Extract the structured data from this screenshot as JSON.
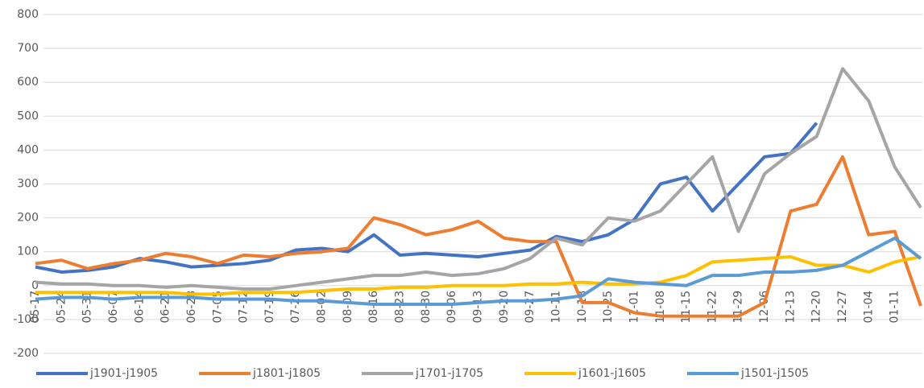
{
  "chart_data": {
    "type": "line",
    "categories": [
      "05-17",
      "05-24",
      "05-31",
      "06-07",
      "06-14",
      "06-21",
      "06-28",
      "07-05",
      "07-12",
      "07-19",
      "07-26",
      "08-02",
      "08-09",
      "08-16",
      "08-23",
      "08-30",
      "09-06",
      "09-13",
      "09-20",
      "09-27",
      "10-11",
      "10-18",
      "10-25",
      "11-01",
      "11-08",
      "11-15",
      "11-22",
      "11-29",
      "12-06",
      "12-13",
      "12-20",
      "12-27",
      "01-04",
      "01-11",
      null
    ],
    "series": [
      {
        "name": "j1901-j1905",
        "color": "#4472c4",
        "values": [
          55,
          40,
          45,
          55,
          80,
          70,
          55,
          60,
          65,
          75,
          105,
          110,
          100,
          150,
          90,
          95,
          90,
          85,
          95,
          105,
          145,
          130,
          150,
          195,
          300,
          320,
          220,
          300,
          380,
          390,
          480,
          null,
          null,
          null,
          null
        ]
      },
      {
        "name": "j1801-j1805",
        "color": "#ed7d31",
        "values": [
          65,
          75,
          50,
          65,
          75,
          95,
          85,
          65,
          90,
          85,
          95,
          100,
          110,
          200,
          180,
          150,
          165,
          190,
          140,
          130,
          130,
          -50,
          -50,
          -80,
          -90,
          -90,
          -90,
          -90,
          -50,
          220,
          240,
          380,
          150,
          160,
          -60
        ]
      },
      {
        "name": "j1701-j1705",
        "color": "#a5a5a5",
        "values": [
          10,
          5,
          5,
          0,
          0,
          -5,
          0,
          -5,
          -10,
          -10,
          0,
          10,
          20,
          30,
          30,
          40,
          30,
          35,
          50,
          80,
          140,
          120,
          200,
          190,
          220,
          300,
          380,
          160,
          330,
          390,
          440,
          640,
          545,
          350,
          230
        ]
      },
      {
        "name": "j1601-j1605",
        "color": "#ffc000",
        "values": [
          -20,
          -20,
          -20,
          -20,
          -20,
          -20,
          -25,
          -25,
          -20,
          -20,
          -20,
          -15,
          -10,
          -10,
          -5,
          -5,
          0,
          0,
          0,
          5,
          5,
          10,
          5,
          5,
          10,
          30,
          70,
          75,
          80,
          85,
          60,
          60,
          40,
          70,
          85
        ]
      },
      {
        "name": "j1501-j1505",
        "color": "#5b9bd5",
        "values": [
          -40,
          -35,
          -35,
          -40,
          -35,
          -35,
          -35,
          -40,
          -40,
          -40,
          -45,
          -45,
          -50,
          -55,
          -55,
          -55,
          -55,
          -50,
          -45,
          -45,
          -40,
          -30,
          20,
          10,
          5,
          0,
          30,
          30,
          40,
          40,
          45,
          60,
          100,
          140,
          80
        ]
      }
    ],
    "ylim": [
      -200,
      800
    ],
    "yticks": [
      -200,
      -100,
      0,
      100,
      200,
      300,
      400,
      500,
      600,
      700,
      800
    ],
    "grid": true,
    "legend": "bottom"
  }
}
